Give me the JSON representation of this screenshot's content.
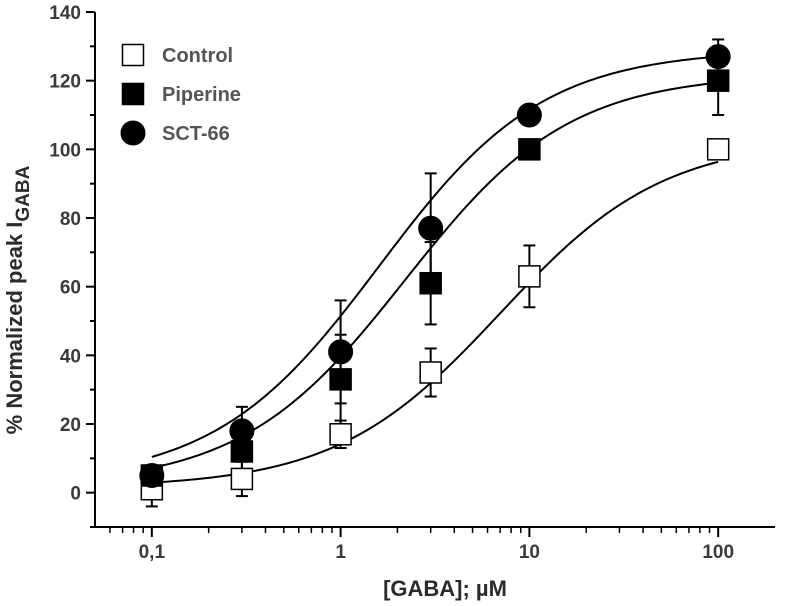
{
  "chart_data": {
    "type": "scatter",
    "title": "",
    "xlabel": "[GABA]; µM",
    "ylabel": "% Normalized peak I",
    "ylabel_subscript": "GABA",
    "x_scale": "log",
    "xlim": [
      0.05,
      200
    ],
    "ylim": [
      -10,
      140
    ],
    "x_ticks": [
      0.1,
      1,
      10,
      100
    ],
    "x_tick_labels": [
      "0,1",
      "1",
      "10",
      "100"
    ],
    "y_ticks": [
      0,
      20,
      40,
      60,
      80,
      100,
      120,
      140
    ],
    "y_tick_labels": [
      "0",
      "20",
      "40",
      "60",
      "80",
      "100",
      "120",
      "140"
    ],
    "grid": false,
    "legend_position": "top-left",
    "x": [
      0.1,
      0.3,
      1,
      3,
      10,
      100
    ],
    "series": [
      {
        "name": "Control",
        "marker": "open-square",
        "values": [
          1,
          4,
          17,
          35,
          63,
          100
        ],
        "errors": [
          5,
          5,
          4,
          7,
          9,
          0
        ],
        "fit": {
          "bottom": 1.5,
          "top": 103,
          "ec50": 7.0,
          "hill": 1.0
        }
      },
      {
        "name": "Piperine",
        "marker": "filled-square",
        "values": [
          5,
          12,
          33,
          61,
          100,
          120
        ],
        "errors": [
          0,
          7,
          13,
          12,
          0,
          10
        ],
        "fit": {
          "bottom": 2,
          "top": 122,
          "ec50": 2.2,
          "hill": 1.0
        }
      },
      {
        "name": "SCT-66",
        "marker": "filled-circle",
        "values": [
          5,
          18,
          41,
          77,
          110,
          127
        ],
        "errors": [
          0,
          7,
          15,
          16,
          0,
          5
        ],
        "fit": {
          "bottom": 3,
          "top": 129,
          "ec50": 1.6,
          "hill": 1.0
        }
      }
    ],
    "colors": {
      "axis": "#000000",
      "marker_fill": "#000000",
      "open_marker_fill": "#ffffff"
    }
  }
}
